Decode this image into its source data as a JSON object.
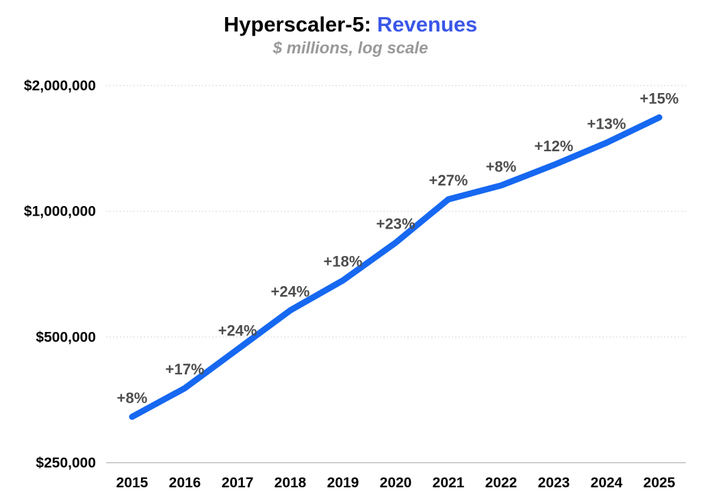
{
  "header": {
    "title_prefix": "Hyperscaler-5:",
    "title_accent": "Revenues",
    "subtitle": "$ millions, log scale"
  },
  "colors": {
    "title_accent": "#3a57e8",
    "subtitle": "#999999",
    "line": "#1668f1",
    "growth_label": "#4d4d4d",
    "grid": "#d9d9d9",
    "axis_line": "#cfcfcf",
    "tick_text": "#000000"
  },
  "chart_data": {
    "type": "line",
    "title": "Hyperscaler-5: Revenues",
    "subtitle": "$ millions, log scale",
    "x_categories": [
      "2015",
      "2016",
      "2017",
      "2018",
      "2019",
      "2020",
      "2021",
      "2022",
      "2023",
      "2024",
      "2025"
    ],
    "series": [
      {
        "name": "Revenues",
        "values": [
          322000,
          377000,
          467000,
          579000,
          683000,
          841000,
          1068000,
          1153000,
          1291000,
          1459000,
          1678000
        ]
      }
    ],
    "growth_labels": [
      "+8%",
      "+17%",
      "+24%",
      "+24%",
      "+18%",
      "+23%",
      "+27%",
      "+8%",
      "+12%",
      "+13%",
      "+15%"
    ],
    "y_ticks": [
      {
        "label": "$2,000,000",
        "value": 2000000
      },
      {
        "label": "$1,000,000",
        "value": 1000000
      },
      {
        "label": "$500,000",
        "value": 500000
      },
      {
        "label": "$250,000",
        "value": 250000
      }
    ],
    "ylim": [
      250000,
      2000000
    ],
    "y_scale": "log",
    "grid": "horizontal-dotted",
    "legend": "none"
  }
}
